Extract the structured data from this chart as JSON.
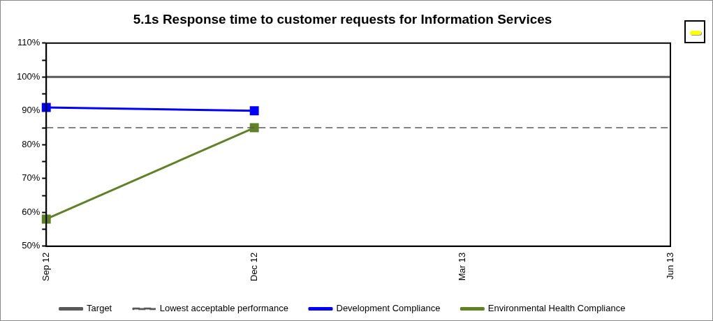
{
  "chart_data": {
    "type": "line",
    "title": "5.1s Response time to customer requests for Information Services",
    "categories": [
      "Sep 12",
      "Dec 12",
      "Mar 13",
      "Jun 13"
    ],
    "series": [
      {
        "name": "Target",
        "color": "#595959",
        "values": [
          100,
          100,
          100,
          100
        ],
        "marker": "none",
        "line_style": "solid"
      },
      {
        "name": "Lowest acceptable performance",
        "color": "#595959",
        "values": [
          85,
          85,
          85,
          85
        ],
        "marker": "none",
        "line_style": "dashed"
      },
      {
        "name": "Development Compliance",
        "color": "#0000ff",
        "values": [
          91,
          90,
          null,
          null
        ],
        "marker": "square",
        "line_style": "solid"
      },
      {
        "name": "Environmental Health Compliance",
        "color": "#608224",
        "values": [
          58,
          85,
          null,
          null
        ],
        "marker": "square",
        "line_style": "solid"
      }
    ],
    "ylim": [
      50,
      110
    ],
    "yticks": [
      {
        "value": 50,
        "label": "50%"
      },
      {
        "value": 55,
        "label": null
      },
      {
        "value": 60,
        "label": "60%"
      },
      {
        "value": 65,
        "label": null
      },
      {
        "value": 70,
        "label": "70%"
      },
      {
        "value": 75,
        "label": null
      },
      {
        "value": 80,
        "label": "80%"
      },
      {
        "value": 85,
        "label": null
      },
      {
        "value": 90,
        "label": "90%"
      },
      {
        "value": 95,
        "label": null
      },
      {
        "value": 100,
        "label": "100%"
      },
      {
        "value": 105,
        "label": null
      },
      {
        "value": 110,
        "label": "110%"
      }
    ],
    "grid": false,
    "legend": "bottom"
  }
}
